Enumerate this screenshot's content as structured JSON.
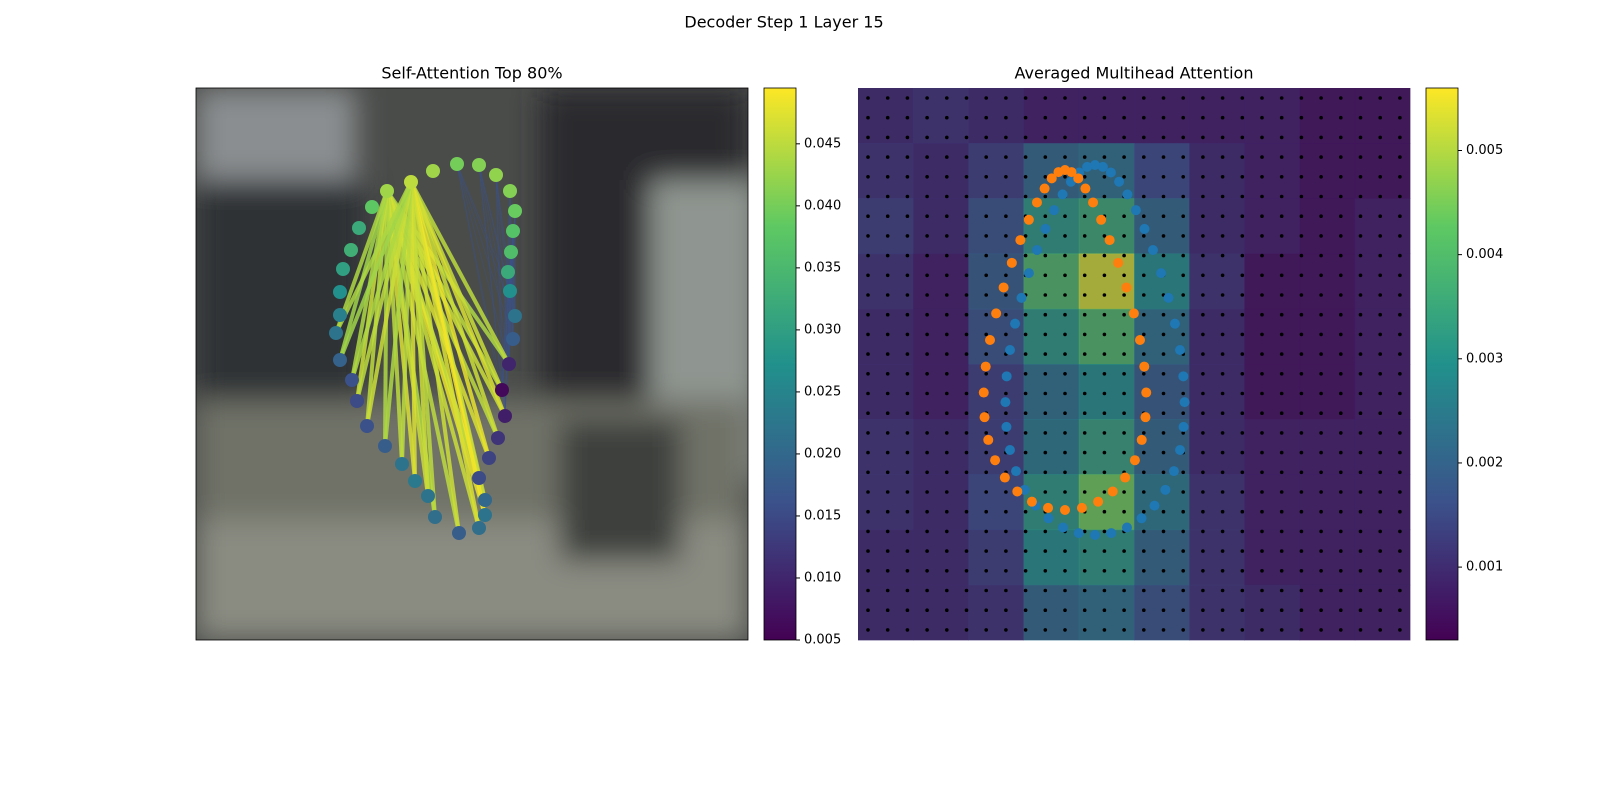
{
  "title": "Decoder Step 1 Layer 15",
  "chart_data": [
    {
      "type": "network",
      "title": "Self-Attention Top 80%",
      "clim": [
        0.005,
        0.0495
      ],
      "cticks": [
        0.005,
        {
          "value": 0.01,
          "label": "0.010"
        },
        0.015,
        {
          "value": 0.02,
          "label": "0.020"
        },
        0.025,
        {
          "value": 0.03,
          "label": "0.030"
        },
        0.035,
        {
          "value": 0.04,
          "label": "0.040"
        },
        0.045
      ],
      "node_values": [
        0.04,
        0.041,
        0.042,
        0.041,
        0.039,
        0.037,
        0.036,
        0.032,
        0.027,
        0.022,
        0.018,
        0.01,
        0.006,
        0.009,
        0.012,
        0.014,
        0.015,
        0.02,
        0.022,
        0.021,
        0.018,
        0.021,
        0.022,
        0.023,
        0.022,
        0.018,
        0.016,
        0.015,
        0.016,
        0.019,
        0.022,
        0.024,
        0.027,
        0.03,
        0.033,
        0.032,
        0.038,
        0.043,
        0.045,
        0.043
      ],
      "edge_values": [
        0.044,
        0.045,
        0.046,
        0.045,
        0.047,
        0.046,
        0.045,
        0.048,
        0.046,
        0.045,
        0.044,
        0.046,
        0.047,
        0.045,
        0.044,
        0.045,
        0.046,
        0.044,
        0.043,
        0.044,
        0.045,
        0.046,
        0.047,
        0.046,
        0.048,
        0.047,
        0.046,
        0.049,
        0.047,
        0.046,
        0.045,
        0.046,
        0.047,
        0.045,
        0.044,
        0.046,
        0.045,
        0.044,
        0.043,
        0.044
      ]
    },
    {
      "type": "heatmap",
      "title": "Averaged Multihead Attention",
      "clim": [
        0.0003,
        0.0056
      ],
      "cticks": [
        0.001,
        0.002,
        0.003,
        0.004,
        0.005
      ],
      "values": [
        [
          0.001,
          0.0012,
          0.001,
          0.0008,
          0.0008,
          0.0008,
          0.0008,
          0.0008,
          0.0006,
          0.0006
        ],
        [
          0.0012,
          0.001,
          0.0014,
          0.0022,
          0.0024,
          0.0016,
          0.001,
          0.0008,
          0.0006,
          0.0006
        ],
        [
          0.0014,
          0.001,
          0.0018,
          0.0032,
          0.0036,
          0.0022,
          0.001,
          0.0008,
          0.0006,
          0.0008
        ],
        [
          0.0012,
          0.0008,
          0.002,
          0.004,
          0.0052,
          0.003,
          0.0012,
          0.0006,
          0.0006,
          0.0008
        ],
        [
          0.001,
          0.0008,
          0.0018,
          0.0032,
          0.004,
          0.0024,
          0.001,
          0.0006,
          0.0006,
          0.0008
        ],
        [
          0.001,
          0.0008,
          0.0014,
          0.0024,
          0.003,
          0.002,
          0.001,
          0.0006,
          0.0006,
          0.0008
        ],
        [
          0.0012,
          0.001,
          0.0014,
          0.0026,
          0.0034,
          0.0022,
          0.001,
          0.0008,
          0.0008,
          0.0008
        ],
        [
          0.0012,
          0.001,
          0.0016,
          0.0032,
          0.0044,
          0.0026,
          0.0012,
          0.0008,
          0.0008,
          0.0008
        ],
        [
          0.001,
          0.001,
          0.0014,
          0.003,
          0.0032,
          0.0022,
          0.0012,
          0.0008,
          0.0008,
          0.0008
        ],
        [
          0.001,
          0.001,
          0.0012,
          0.0022,
          0.0024,
          0.0018,
          0.0012,
          0.001,
          0.0008,
          0.0008
        ]
      ]
    }
  ]
}
